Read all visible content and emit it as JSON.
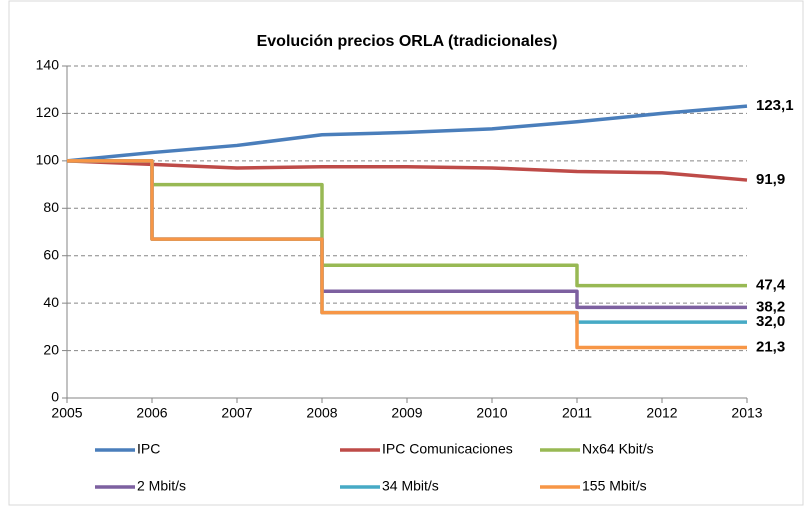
{
  "chart_data": {
    "type": "line",
    "title": "Evolución precios ORLA (tradicionales)",
    "xlim": [
      2005,
      2013
    ],
    "xticks": [
      2005,
      2006,
      2007,
      2008,
      2009,
      2010,
      2011,
      2012,
      2013
    ],
    "ylim": [
      0,
      140
    ],
    "yticks": [
      0,
      20,
      40,
      60,
      80,
      100,
      120,
      140
    ],
    "grid": true,
    "legend": "bottom",
    "series": [
      {
        "name": "IPC",
        "color": "#4a7ebb",
        "x": [
          2005,
          2006,
          2007,
          2008,
          2009,
          2010,
          2011,
          2012,
          2013
        ],
        "values": [
          100,
          103.5,
          106.5,
          111,
          112,
          113.5,
          116.5,
          120,
          123.1
        ],
        "value_labels": [
          null,
          null,
          null,
          null,
          null,
          null,
          null,
          null,
          "123,1"
        ]
      },
      {
        "name": "IPC Comunicaciones",
        "color": "#be4b48",
        "x": [
          2005,
          2006,
          2007,
          2008,
          2009,
          2010,
          2011,
          2012,
          2013
        ],
        "values": [
          100,
          98.5,
          97,
          97.5,
          97.5,
          97,
          95.5,
          95,
          91.9
        ],
        "value_labels": [
          null,
          null,
          null,
          null,
          null,
          null,
          null,
          null,
          "91,9"
        ]
      },
      {
        "name": "Nx64 Kbit/s",
        "color": "#98b954",
        "x": [
          2005,
          2006,
          2006,
          2008,
          2008,
          2011,
          2011,
          2013
        ],
        "values": [
          100,
          100,
          90,
          90,
          56,
          56,
          47.4,
          47.4
        ],
        "value_labels": [
          null,
          null,
          null,
          null,
          null,
          null,
          null,
          "47,4"
        ]
      },
      {
        "name": "2 Mbit/s",
        "color": "#7d60a0",
        "x": [
          2005,
          2006,
          2006,
          2008,
          2008,
          2011,
          2011,
          2013
        ],
        "values": [
          100,
          100,
          67,
          67,
          45,
          45,
          38.2,
          38.2
        ],
        "value_labels": [
          null,
          null,
          null,
          null,
          null,
          null,
          null,
          "38,2"
        ]
      },
      {
        "name": "34 Mbit/s",
        "color": "#46aac5",
        "x": [
          2005,
          2006,
          2006,
          2008,
          2008,
          2011,
          2011,
          2013
        ],
        "values": [
          100,
          100,
          67,
          67,
          36,
          36,
          32,
          32
        ],
        "value_labels": [
          null,
          null,
          null,
          null,
          null,
          null,
          null,
          "32,0"
        ]
      },
      {
        "name": "155 Mbit/s",
        "color": "#f79646",
        "x": [
          2005,
          2006,
          2006,
          2008,
          2008,
          2011,
          2011,
          2013
        ],
        "values": [
          100,
          100,
          67,
          67,
          36,
          36,
          21.3,
          21.3
        ],
        "value_labels": [
          null,
          null,
          null,
          null,
          null,
          null,
          null,
          "21,3"
        ]
      }
    ]
  }
}
